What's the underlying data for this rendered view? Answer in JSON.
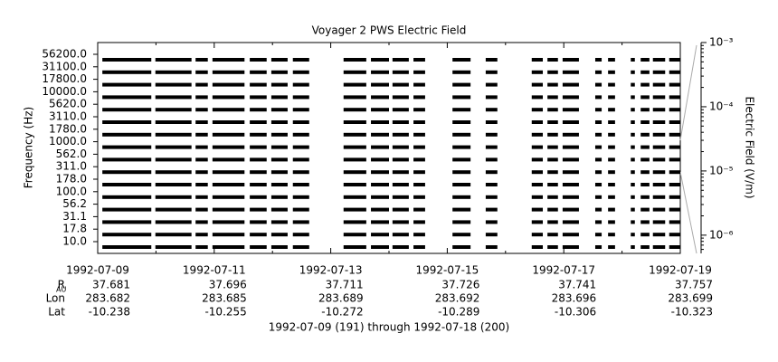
{
  "chart_data": {
    "type": "strip",
    "title": "Voyager 2 PWS Electric Field",
    "ylabel": "Frequency (Hz)",
    "y2label": "Electric Field (V/m)",
    "categories": [
      "56200.0",
      "31100.0",
      "17800.0",
      "10000.0",
      "5620.0",
      "3110.0",
      "1780.0",
      "1000.0",
      "562.0",
      "311.0",
      "178.0",
      "100.0",
      "56.2",
      "31.1",
      "17.8",
      "10.0"
    ],
    "xlim": [
      191,
      201
    ],
    "xticks": [
      {
        "value": 191,
        "label": "1992-07-09"
      },
      {
        "value": 193,
        "label": "1992-07-11"
      },
      {
        "value": 195,
        "label": "1992-07-13"
      },
      {
        "value": 197,
        "label": "1992-07-15"
      },
      {
        "value": 199,
        "label": "1992-07-17"
      },
      {
        "value": 201,
        "label": "1992-07-19"
      }
    ],
    "segments": [
      [
        191.08,
        191.92
      ],
      [
        191.99,
        192.61
      ],
      [
        192.68,
        192.89
      ],
      [
        192.97,
        193.52
      ],
      [
        193.61,
        193.9
      ],
      [
        193.98,
        194.26
      ],
      [
        194.35,
        194.63
      ],
      [
        195.22,
        195.61
      ],
      [
        195.69,
        196.0
      ],
      [
        196.06,
        196.34
      ],
      [
        196.42,
        196.62
      ],
      [
        197.09,
        197.4
      ],
      [
        197.66,
        197.86
      ],
      [
        198.45,
        198.64
      ],
      [
        198.72,
        198.9
      ],
      [
        198.98,
        199.26
      ],
      [
        199.54,
        199.65
      ],
      [
        199.76,
        199.88
      ],
      [
        200.15,
        200.22
      ],
      [
        200.32,
        200.47
      ],
      [
        200.53,
        200.74
      ],
      [
        200.81,
        201.0
      ]
    ],
    "y2lim": [
      5.2e-07,
      0.001
    ],
    "y2log": true,
    "y2ticks": [
      {
        "value": 0.001,
        "label": "10⁻³"
      },
      {
        "value": 0.0001,
        "label": "10⁻⁴"
      },
      {
        "value": 1e-05,
        "label": "10⁻⁵"
      },
      {
        "value": 1e-06,
        "label": "10⁻⁶"
      }
    ],
    "ephemeris": [
      {
        "label": "R",
        "sub": "AU",
        "values": [
          "37.681",
          "37.696",
          "37.711",
          "37.726",
          "37.741",
          "37.757"
        ]
      },
      {
        "label": "Lon",
        "values": [
          "283.682",
          "283.685",
          "283.689",
          "283.692",
          "283.696",
          "283.699"
        ]
      },
      {
        "label": "Lat",
        "values": [
          "-10.238",
          "-10.255",
          "-10.272",
          "-10.289",
          "-10.306",
          "-10.323"
        ]
      }
    ],
    "footer": "1992-07-09 (191) through 1992-07-18 (200)"
  }
}
